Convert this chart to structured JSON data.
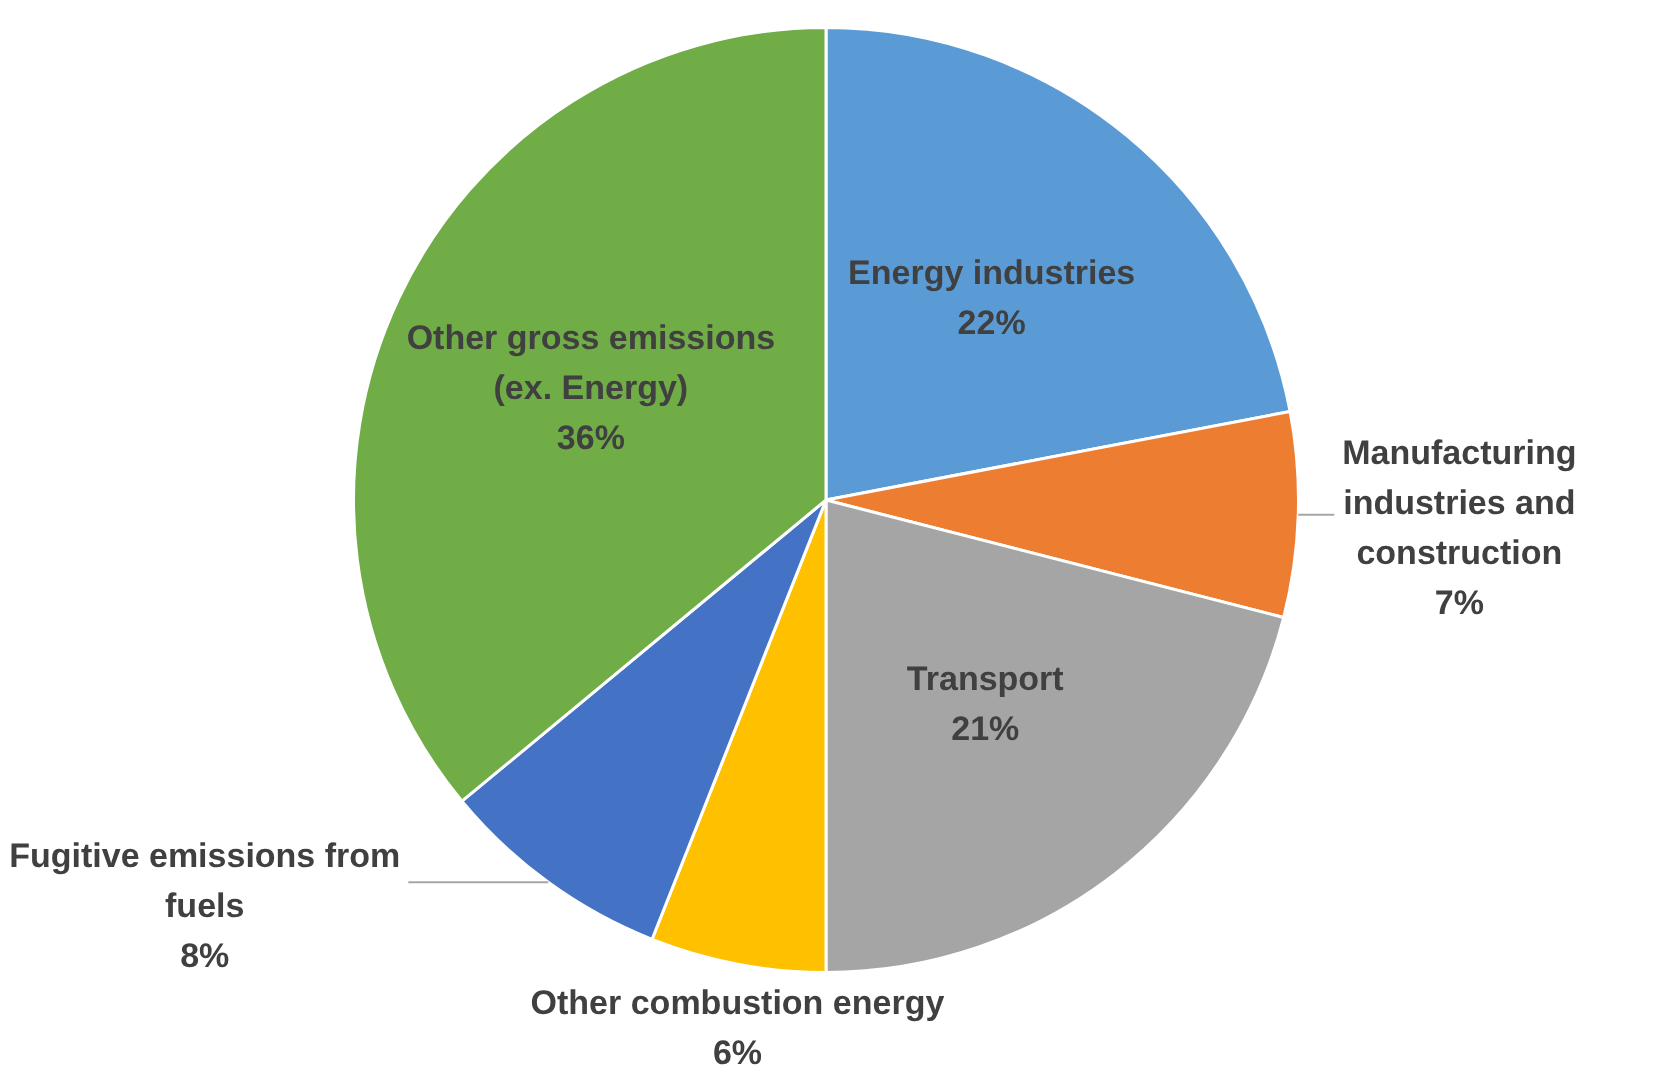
{
  "chart_data": {
    "type": "pie",
    "categories": [
      "Energy industries",
      "Manufacturing industries and construction",
      "Transport",
      "Other combustion energy",
      "Fugitive emissions from fuels",
      "Other gross emissions (ex. Energy)"
    ],
    "values": [
      22,
      7,
      21,
      6,
      8,
      36
    ],
    "colors": [
      "#5b9bd5",
      "#ed7d31",
      "#a5a5a5",
      "#ffc000",
      "#4472c4",
      "#70ad47"
    ],
    "value_labels": [
      "22%",
      "7%",
      "21%",
      "6%",
      "8%",
      "36%"
    ]
  }
}
